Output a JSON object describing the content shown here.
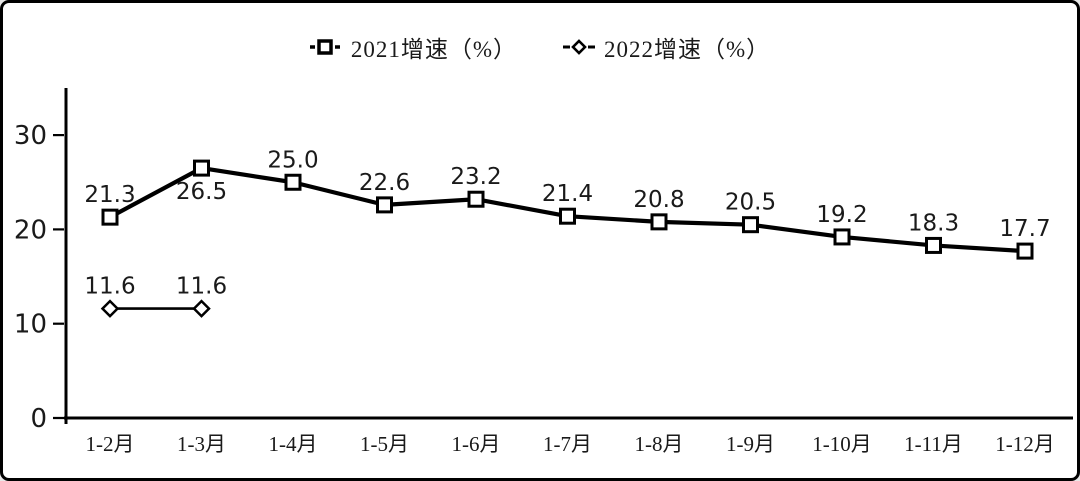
{
  "legend": {
    "items": [
      {
        "label": "2021增速（%）",
        "marker": "square-icon"
      },
      {
        "label": "2022增速（%）",
        "marker": "diamond-icon"
      }
    ]
  },
  "chart_data": {
    "type": "line",
    "title": "",
    "categories": [
      "1-2月",
      "1-3月",
      "1-4月",
      "1-5月",
      "1-6月",
      "1-7月",
      "1-8月",
      "1-9月",
      "1-10月",
      "1-11月",
      "1-12月"
    ],
    "series": [
      {
        "name": "2021增速（%）",
        "marker": "square",
        "values": [
          21.3,
          26.5,
          25.0,
          22.6,
          23.2,
          21.4,
          20.8,
          20.5,
          19.2,
          18.3,
          17.7
        ]
      },
      {
        "name": "2022增速（%）",
        "marker": "diamond",
        "values": [
          11.6,
          11.6,
          null,
          null,
          null,
          null,
          null,
          null,
          null,
          null,
          null
        ]
      }
    ],
    "yticks": [
      0,
      10,
      20,
      30
    ],
    "ylim": [
      0,
      35
    ],
    "xlabel": "",
    "ylabel": "",
    "grid": false,
    "legend_position": "top-center",
    "data_labels_shown": true,
    "labels_below": {
      "series": 0,
      "indices": [
        1
      ]
    },
    "colors": {
      "line": "#000000",
      "marker_fill": "#ffffff",
      "text": "#1a1a1a",
      "axis": "#000000",
      "background": "#ffffff"
    }
  }
}
